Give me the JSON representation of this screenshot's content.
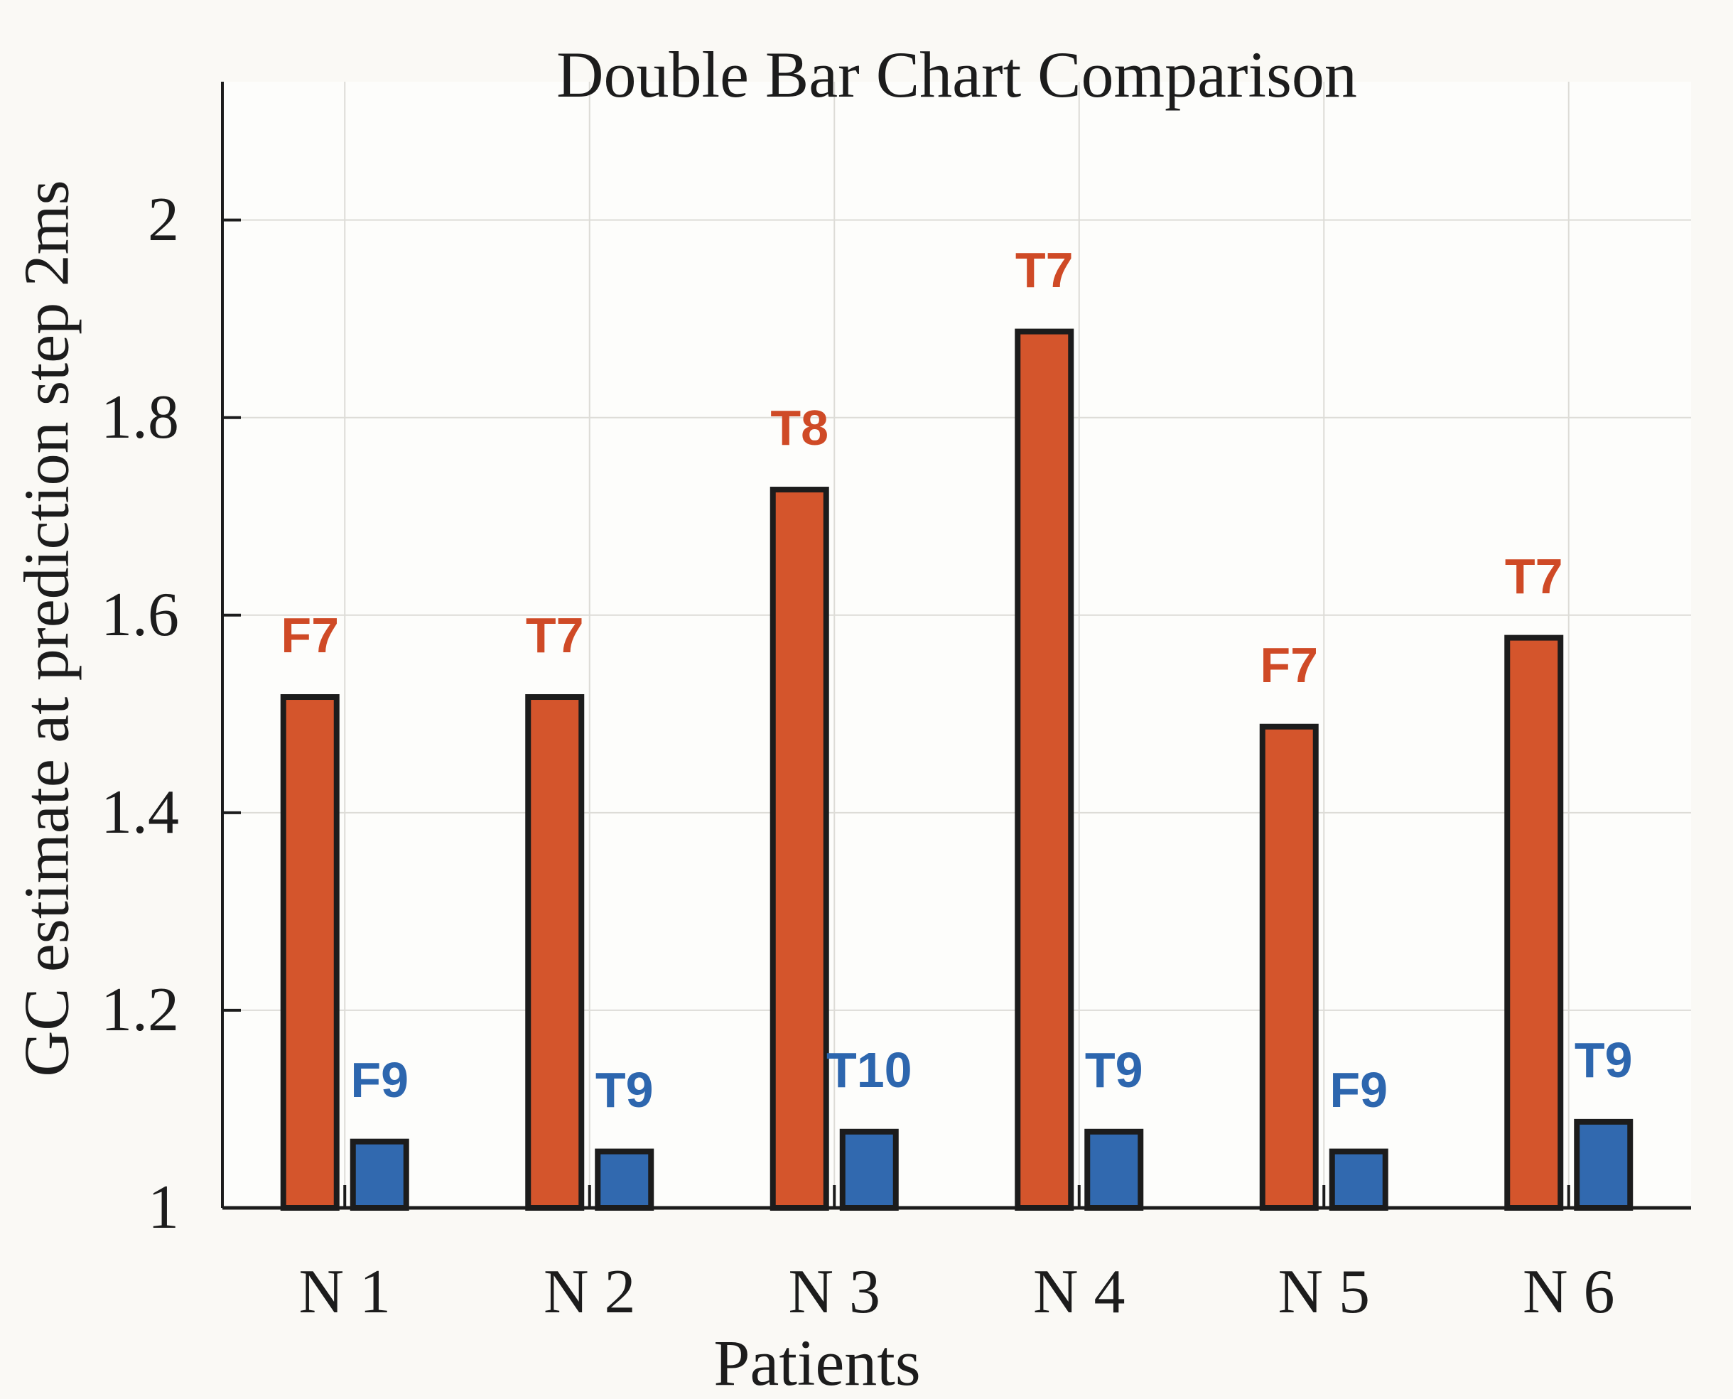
{
  "figure": {
    "title": "Double Bar Chart Comparison",
    "xlabel": "Patients",
    "ylabel": "GC estimate at prediction step 2ms"
  },
  "colors": {
    "background": "#FAF9F5",
    "plot_background": "#FDFDFB",
    "grid": "#DDDCD7",
    "axis": "#1C1C1C",
    "orange_bar": "#D4552C",
    "orange_label": "#CF4A26",
    "blue_bar": "#3169AF",
    "blue_label": "#2D66AE"
  },
  "chart_data": {
    "type": "bar",
    "title": "Double Bar Chart Comparison",
    "xlabel": "Patients",
    "ylabel": "GC estimate at prediction step 2ms",
    "categories": [
      "N 1",
      "N 2",
      "N 3",
      "N 4",
      "N 5",
      "N 6"
    ],
    "series": [
      {
        "name": "orange-series",
        "color": "#D4552C",
        "label_color": "#CF4A26",
        "values": [
          1.52,
          1.52,
          1.73,
          1.89,
          1.49,
          1.58
        ],
        "bar_labels": [
          "F7",
          "T7",
          "T8",
          "T7",
          "F7",
          "T7"
        ]
      },
      {
        "name": "blue-series",
        "color": "#3169AF",
        "label_color": "#2D66AE",
        "values": [
          1.07,
          1.06,
          1.08,
          1.08,
          1.06,
          1.09
        ],
        "bar_labels": [
          "F9",
          "T9",
          "T10",
          "T9",
          "F9",
          "T9"
        ]
      }
    ],
    "ylim": [
      1,
      2.14
    ],
    "yticks": [
      1,
      1.2,
      1.4,
      1.6,
      1.8,
      2
    ],
    "ytick_labels": [
      "1",
      "1.2",
      "1.4",
      "1.6",
      "1.8",
      "2"
    ],
    "grid": true,
    "legend": "none",
    "bar_outline": "#1C1C1C"
  }
}
